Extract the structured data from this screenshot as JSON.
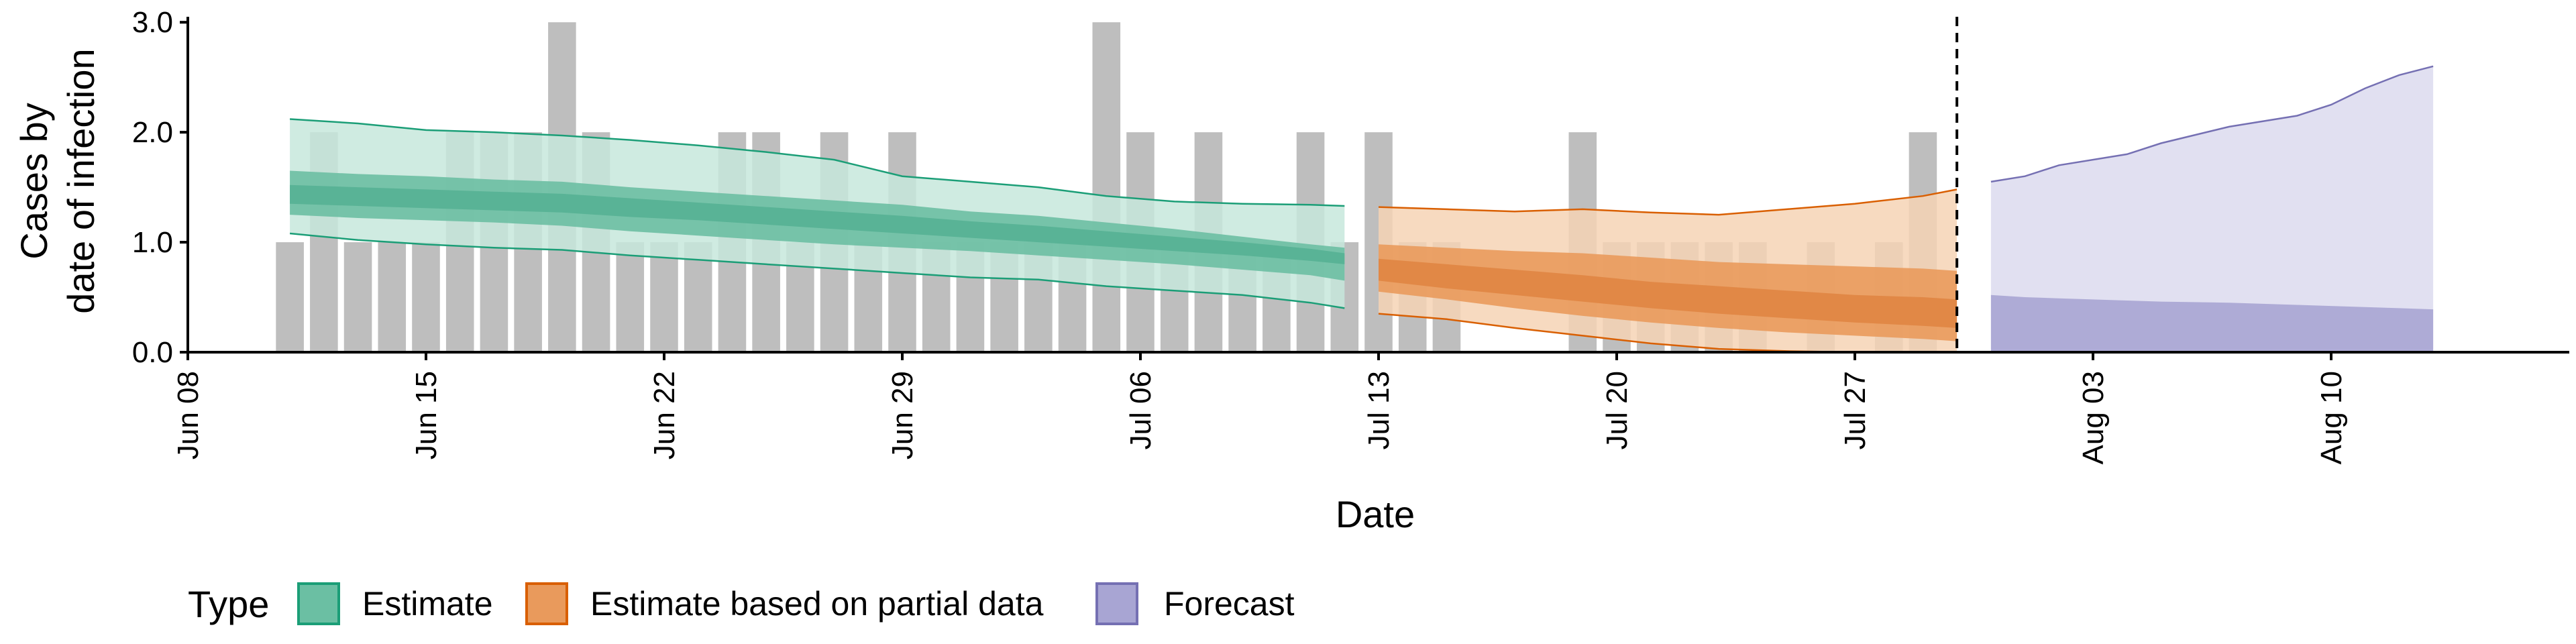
{
  "chart_data": {
    "type": "area",
    "xlabel": "Date",
    "ylabel_lines": [
      "Cases by",
      "date of infection"
    ],
    "x_range": [
      "2020-06-08",
      "2020-08-17"
    ],
    "ylim": [
      0,
      3.05
    ],
    "grid": false,
    "x_ticks": [
      {
        "date": "2020-06-08",
        "label": "Jun 08"
      },
      {
        "date": "2020-06-15",
        "label": "Jun 15"
      },
      {
        "date": "2020-06-22",
        "label": "Jun 22"
      },
      {
        "date": "2020-06-29",
        "label": "Jun 29"
      },
      {
        "date": "2020-07-06",
        "label": "Jul 06"
      },
      {
        "date": "2020-07-13",
        "label": "Jul 13"
      },
      {
        "date": "2020-07-20",
        "label": "Jul 20"
      },
      {
        "date": "2020-07-27",
        "label": "Jul 27"
      },
      {
        "date": "2020-08-03",
        "label": "Aug 03"
      },
      {
        "date": "2020-08-10",
        "label": "Aug 10"
      }
    ],
    "y_ticks": [
      {
        "value": 0,
        "label": "0.0"
      },
      {
        "value": 1,
        "label": "1.0"
      },
      {
        "value": 2,
        "label": "2.0"
      },
      {
        "value": 3,
        "label": "3.0"
      }
    ],
    "forecast_line_date": "2020-07-30",
    "bars": {
      "color": "#bebebe",
      "dates": [
        "2020-06-11",
        "2020-06-12",
        "2020-06-13",
        "2020-06-14",
        "2020-06-15",
        "2020-06-16",
        "2020-06-17",
        "2020-06-18",
        "2020-06-19",
        "2020-06-20",
        "2020-06-21",
        "2020-06-22",
        "2020-06-23",
        "2020-06-24",
        "2020-06-25",
        "2020-06-26",
        "2020-06-27",
        "2020-06-28",
        "2020-06-29",
        "2020-06-30",
        "2020-07-01",
        "2020-07-02",
        "2020-07-03",
        "2020-07-04",
        "2020-07-05",
        "2020-07-06",
        "2020-07-07",
        "2020-07-08",
        "2020-07-09",
        "2020-07-10",
        "2020-07-11",
        "2020-07-12",
        "2020-07-13",
        "2020-07-14",
        "2020-07-15",
        "2020-07-16",
        "2020-07-17",
        "2020-07-18",
        "2020-07-19",
        "2020-07-20",
        "2020-07-21",
        "2020-07-22",
        "2020-07-23",
        "2020-07-24",
        "2020-07-25",
        "2020-07-26",
        "2020-07-27",
        "2020-07-28",
        "2020-07-29"
      ],
      "values": [
        1,
        2,
        1,
        1,
        1,
        2,
        2,
        2,
        3,
        2,
        1,
        1,
        1,
        2,
        2,
        1,
        2,
        1,
        2,
        1,
        1,
        1,
        1,
        1,
        3,
        2,
        1,
        2,
        1,
        1,
        2,
        1,
        2,
        1,
        1,
        0,
        0,
        0,
        2,
        1,
        1,
        1,
        1,
        1,
        0,
        1,
        0,
        1,
        2
      ]
    },
    "legend": {
      "title": "Type",
      "position": "bottom",
      "items": [
        "Estimate",
        "Estimate based on partial data",
        "Forecast"
      ]
    },
    "series": [
      {
        "name": "Estimate",
        "outer_fill": "#c7e7dc",
        "inner_fill": "#6bbfa3",
        "core_fill": "#56b193",
        "line_color": "#1b9e77",
        "dates": [
          "2020-06-11",
          "2020-06-13",
          "2020-06-15",
          "2020-06-17",
          "2020-06-19",
          "2020-06-21",
          "2020-06-23",
          "2020-06-25",
          "2020-06-27",
          "2020-06-29",
          "2020-07-01",
          "2020-07-03",
          "2020-07-05",
          "2020-07-07",
          "2020-07-09",
          "2020-07-11",
          "2020-07-12"
        ],
        "lower90": [
          1.08,
          1.02,
          0.98,
          0.95,
          0.93,
          0.88,
          0.84,
          0.8,
          0.76,
          0.72,
          0.68,
          0.66,
          0.6,
          0.56,
          0.52,
          0.45,
          0.4
        ],
        "upper90": [
          2.12,
          2.08,
          2.02,
          2.0,
          1.97,
          1.93,
          1.88,
          1.82,
          1.75,
          1.6,
          1.55,
          1.5,
          1.42,
          1.37,
          1.35,
          1.34,
          1.33
        ],
        "lower50": [
          1.25,
          1.22,
          1.2,
          1.18,
          1.15,
          1.1,
          1.06,
          1.02,
          0.98,
          0.95,
          0.92,
          0.88,
          0.84,
          0.8,
          0.75,
          0.7,
          0.65
        ],
        "upper50": [
          1.65,
          1.62,
          1.6,
          1.57,
          1.55,
          1.5,
          1.46,
          1.42,
          1.38,
          1.34,
          1.28,
          1.24,
          1.18,
          1.12,
          1.05,
          0.98,
          0.95
        ],
        "lower20": [
          1.35,
          1.33,
          1.31,
          1.29,
          1.27,
          1.23,
          1.2,
          1.16,
          1.12,
          1.08,
          1.04,
          1.0,
          0.96,
          0.92,
          0.88,
          0.83,
          0.8
        ],
        "upper20": [
          1.52,
          1.5,
          1.48,
          1.46,
          1.44,
          1.4,
          1.36,
          1.32,
          1.28,
          1.24,
          1.19,
          1.15,
          1.1,
          1.05,
          1.0,
          0.94,
          0.9
        ]
      },
      {
        "name": "Estimate based on partial data",
        "outer_fill": "#f6d3b5",
        "inner_fill": "#e99a5c",
        "core_fill": "#e08543",
        "line_color": "#d95f02",
        "dates": [
          "2020-07-13",
          "2020-07-15",
          "2020-07-17",
          "2020-07-19",
          "2020-07-21",
          "2020-07-23",
          "2020-07-25",
          "2020-07-27",
          "2020-07-29",
          "2020-07-30"
        ],
        "lower90": [
          0.35,
          0.3,
          0.22,
          0.15,
          0.08,
          0.03,
          0.01,
          0.0,
          0.0,
          0.0
        ],
        "upper90": [
          1.32,
          1.3,
          1.28,
          1.3,
          1.27,
          1.25,
          1.3,
          1.35,
          1.42,
          1.48
        ],
        "lower50": [
          0.55,
          0.48,
          0.4,
          0.33,
          0.27,
          0.22,
          0.18,
          0.15,
          0.12,
          0.1
        ],
        "upper50": [
          0.98,
          0.95,
          0.92,
          0.9,
          0.86,
          0.82,
          0.8,
          0.78,
          0.76,
          0.74
        ],
        "lower20": [
          0.65,
          0.58,
          0.52,
          0.46,
          0.4,
          0.35,
          0.31,
          0.27,
          0.24,
          0.22
        ],
        "upper20": [
          0.85,
          0.8,
          0.75,
          0.7,
          0.64,
          0.6,
          0.56,
          0.52,
          0.5,
          0.48
        ]
      },
      {
        "name": "Forecast",
        "outer_fill": "#dcdbee",
        "inner_fill": "#a8a5d3",
        "line_color": "#7570b3",
        "dates": [
          "2020-07-31",
          "2020-08-01",
          "2020-08-02",
          "2020-08-04",
          "2020-08-05",
          "2020-08-07",
          "2020-08-09",
          "2020-08-10",
          "2020-08-11",
          "2020-08-12",
          "2020-08-13"
        ],
        "lower90": [
          0,
          0,
          0,
          0,
          0,
          0,
          0,
          0,
          0,
          0,
          0
        ],
        "upper90": [
          1.55,
          1.6,
          1.7,
          1.8,
          1.9,
          2.05,
          2.15,
          2.25,
          2.4,
          2.52,
          2.6
        ],
        "lower50": [
          0,
          0,
          0,
          0,
          0,
          0,
          0,
          0,
          0,
          0,
          0
        ],
        "upper50": [
          0.52,
          0.5,
          0.49,
          0.47,
          0.46,
          0.45,
          0.43,
          0.42,
          0.41,
          0.4,
          0.39
        ]
      }
    ]
  }
}
